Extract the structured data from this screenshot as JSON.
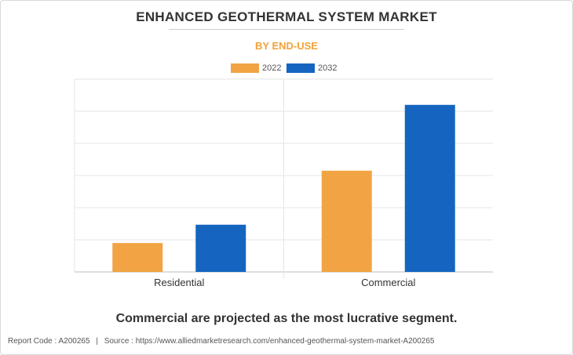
{
  "title": "ENHANCED GEOTHERMAL SYSTEM MARKET",
  "subtitle": "BY END-USE",
  "caption": "Commercial are projected as the most lucrative segment.",
  "footer": {
    "report_code": "Report Code : A200265",
    "separator": "|",
    "source": "Source : https://www.alliedmarketresearch.com/enhanced-geothermal-system-market-A200265"
  },
  "colors": {
    "series_2022": "#f2a444",
    "series_2032": "#1565c0",
    "subtitle": "#f2a13a"
  },
  "chart_data": {
    "type": "bar",
    "categories": [
      "Residential",
      "Commercial"
    ],
    "series": [
      {
        "name": "2022",
        "values": [
          0.9,
          3.15
        ]
      },
      {
        "name": "2032",
        "values": [
          1.47,
          5.2
        ]
      }
    ],
    "ylim": [
      0,
      6
    ],
    "grid": true,
    "legend": "top-center"
  }
}
